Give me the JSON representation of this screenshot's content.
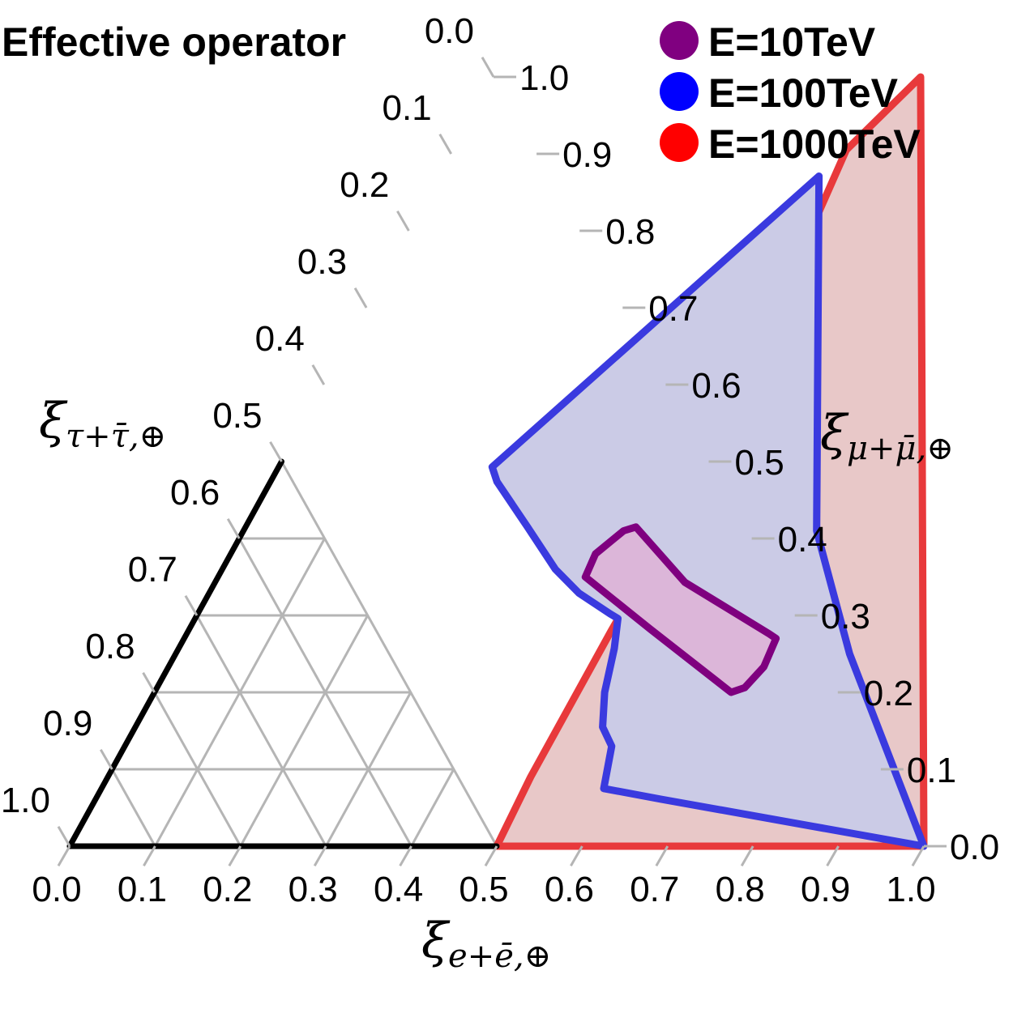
{
  "chart_data": {
    "type": "ternary",
    "title": "Effective operator",
    "axes": {
      "bottom": {
        "label_main": "ξ",
        "label_sub": "e+ē,⊕",
        "ticks": [
          "0.0",
          "0.1",
          "0.2",
          "0.3",
          "0.4",
          "0.5",
          "0.6",
          "0.7",
          "0.8",
          "0.9",
          "1.0"
        ]
      },
      "right": {
        "label_main": "ξ",
        "label_sub": "μ+μ̄,⊕",
        "ticks": [
          "0.0",
          "0.1",
          "0.2",
          "0.3",
          "0.4",
          "0.5",
          "0.6",
          "0.7",
          "0.8",
          "0.9",
          "1.0"
        ]
      },
      "left": {
        "label_main": "ξ",
        "label_sub": "τ+τ̄,⊕",
        "ticks": [
          "0.0",
          "0.1",
          "0.2",
          "0.3",
          "0.4",
          "0.5",
          "0.6",
          "0.7",
          "0.8",
          "0.9",
          "1.0"
        ]
      }
    },
    "grid": true,
    "grid_region": "lower-left sub-triangle (e ≤ 0.5, μ ≤ 0.5)",
    "legend": {
      "position": "top-right",
      "entries": [
        {
          "label": "E=10TeV",
          "color": "#800080"
        },
        {
          "label": "E=100TeV",
          "color": "#0000ff"
        },
        {
          "label": "E=1000TeV",
          "color": "#ff0000"
        }
      ]
    },
    "regions": [
      {
        "name": "E=1000TeV",
        "stroke": "#e8393b",
        "fill": "#e8c8c8",
        "points": [
          [
            0.5,
            1.0
          ],
          [
            0.46,
            0.905
          ],
          [
            0.5,
            0.5
          ],
          [
            0.495,
            0.28
          ],
          [
            0.495,
            0.19
          ],
          [
            0.495,
            0.09
          ],
          [
            0.5,
            0.0
          ],
          [
            1.0,
            0.0
          ],
          [
            0.5,
            1.0
          ]
        ]
      },
      {
        "name": "E=100TeV",
        "stroke": "#3a3adf",
        "fill": "#cbcbe6",
        "points": [
          [
            0.445,
            0.871
          ],
          [
            0.25,
            0.493
          ],
          [
            0.265,
            0.474
          ],
          [
            0.33,
            0.415
          ],
          [
            0.39,
            0.36
          ],
          [
            0.433,
            0.329
          ],
          [
            0.483,
            0.302
          ],
          [
            0.495,
            0.296
          ],
          [
            0.51,
            0.257
          ],
          [
            0.527,
            0.2
          ],
          [
            0.547,
            0.155
          ],
          [
            0.57,
            0.13
          ],
          [
            0.588,
            0.075
          ],
          [
            0.662,
            0.061
          ],
          [
            1.0,
            0.0
          ],
          [
            0.789,
            0.25
          ],
          [
            0.671,
            0.41
          ],
          [
            0.445,
            0.871
          ]
        ]
      },
      {
        "name": "E=10TeV",
        "stroke": "#7f007f",
        "fill": "#dcb6d9",
        "points": [
          [
            0.445,
            0.41
          ],
          [
            0.457,
            0.415
          ],
          [
            0.55,
            0.343
          ],
          [
            0.682,
            0.276
          ],
          [
            0.693,
            0.27
          ],
          [
            0.697,
            0.233
          ],
          [
            0.688,
            0.206
          ],
          [
            0.675,
            0.2
          ],
          [
            0.54,
            0.282
          ],
          [
            0.43,
            0.35
          ],
          [
            0.427,
            0.38
          ],
          [
            0.445,
            0.41
          ]
        ]
      }
    ]
  }
}
